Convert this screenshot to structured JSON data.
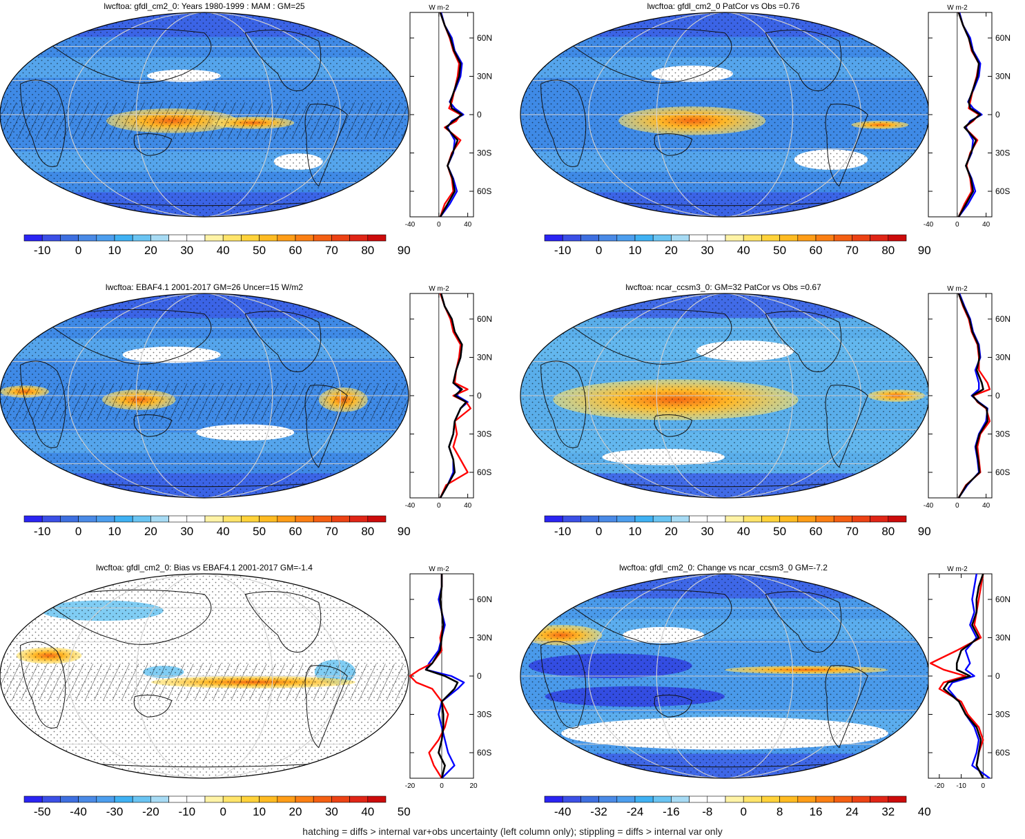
{
  "figure": {
    "footnote": "hatching = diffs > internal var+obs uncertainty (left column only); stippling = diffs > internal var only"
  },
  "colorbars": {
    "abs": {
      "labels": [
        "-10",
        "0",
        "10",
        "20",
        "30",
        "40",
        "50",
        "60",
        "70",
        "80",
        "90"
      ],
      "colors": [
        "#2a24f2",
        "#3b4fe6",
        "#3e6fe0",
        "#4a8ae6",
        "#4c9eee",
        "#3fb1f3",
        "#6ac4f2",
        "#a7dbf4",
        "#ffffff",
        "#ffffff",
        "#fff3a6",
        "#ffe46a",
        "#ffd23a",
        "#ffbb22",
        "#ff9d17",
        "#fb7f13",
        "#f45f12",
        "#ec4214",
        "#e02516",
        "#cc0b0b"
      ]
    },
    "bias": {
      "labels": [
        "-50",
        "-40",
        "-30",
        "-20",
        "-10",
        "0",
        "10",
        "20",
        "30",
        "40",
        "50"
      ],
      "colors": [
        "#2a24f2",
        "#3b4fe6",
        "#3e6fe0",
        "#4a8ae6",
        "#4c9eee",
        "#3fb1f3",
        "#6ac4f2",
        "#a7dbf4",
        "#ffffff",
        "#ffffff",
        "#fff3a6",
        "#ffe46a",
        "#ffd23a",
        "#ffbb22",
        "#ff9d17",
        "#fb7f13",
        "#f45f12",
        "#ec4214",
        "#e02516",
        "#cc0b0b"
      ]
    },
    "change": {
      "labels": [
        "-40",
        "-32",
        "-24",
        "-16",
        "-8",
        "0",
        "8",
        "16",
        "24",
        "32",
        "40"
      ],
      "colors": [
        "#2a24f2",
        "#3b4fe6",
        "#3e6fe0",
        "#4a8ae6",
        "#4c9eee",
        "#3fb1f3",
        "#6ac4f2",
        "#a7dbf4",
        "#ffffff",
        "#ffffff",
        "#fff3a6",
        "#ffe46a",
        "#ffd23a",
        "#ffbb22",
        "#ff9d17",
        "#fb7f13",
        "#f45f12",
        "#ec4214",
        "#e02516",
        "#cc0b0b"
      ]
    }
  },
  "lat_labels": [
    "60N",
    "30N",
    "0",
    "30S",
    "60S"
  ],
  "profile_unit": "W m-2",
  "series_colors": {
    "obs": "#0000ff",
    "model": "#ff0000",
    "other": "#000000"
  },
  "chart_data": [
    {
      "type": "heatmap",
      "title": "lwcftoa: gfdl_cm2_0: Years 1980-1999 : MAM : GM=25",
      "colorbar": "abs",
      "theme": "abs1",
      "profile": {
        "xticks": [
          -40,
          0,
          40
        ],
        "xlim": [
          -40,
          48
        ],
        "lat": [
          -80,
          -70,
          -60,
          -50,
          -40,
          -30,
          -20,
          -10,
          -5,
          0,
          5,
          10,
          20,
          30,
          40,
          50,
          60,
          70,
          80
        ],
        "series": [
          {
            "color": "blue",
            "values": [
              2,
              15,
              25,
              20,
              12,
              20,
              22,
              12,
              18,
              34,
              22,
              15,
              23,
              30,
              32,
              22,
              18,
              8,
              3
            ]
          },
          {
            "color": "red",
            "values": [
              2,
              8,
              20,
              18,
              12,
              18,
              30,
              8,
              24,
              30,
              14,
              18,
              22,
              26,
              28,
              20,
              15,
              8,
              2
            ]
          },
          {
            "color": "black",
            "values": [
              2,
              12,
              22,
              19,
              12,
              19,
              26,
              10,
              20,
              32,
              18,
              16,
              22,
              28,
              30,
              21,
              16,
              8,
              2
            ]
          }
        ]
      }
    },
    {
      "type": "heatmap",
      "title": "lwcftoa: gfdl_cm2_0 PatCor vs Obs =0.76",
      "colorbar": "abs",
      "theme": "abs2",
      "profile": {
        "xticks": [
          -40,
          0,
          40
        ],
        "xlim": [
          -40,
          48
        ],
        "lat": [
          -80,
          -70,
          -60,
          -50,
          -40,
          -30,
          -20,
          -10,
          -5,
          0,
          5,
          10,
          20,
          30,
          40,
          50,
          60,
          70,
          80
        ],
        "series": [
          {
            "color": "blue",
            "values": [
              2,
              15,
              25,
              20,
              12,
              20,
              22,
              12,
              18,
              34,
              22,
              15,
              23,
              30,
              32,
              22,
              18,
              8,
              3
            ]
          },
          {
            "color": "red",
            "values": [
              2,
              10,
              20,
              18,
              13,
              18,
              28,
              10,
              22,
              30,
              16,
              18,
              22,
              27,
              30,
              20,
              16,
              8,
              2
            ]
          },
          {
            "color": "black",
            "values": [
              2,
              12,
              22,
              19,
              12,
              19,
              26,
              10,
              20,
              32,
              18,
              16,
              22,
              28,
              30,
              21,
              16,
              8,
              2
            ]
          }
        ]
      }
    },
    {
      "type": "heatmap",
      "title": "lwcftoa: EBAF4.1 2001-2017 GM=26 Uncer=15 W/m2",
      "colorbar": "abs",
      "theme": "abs3",
      "profile": {
        "xticks": [
          -40,
          0,
          40
        ],
        "xlim": [
          -40,
          48
        ],
        "lat": [
          -80,
          -70,
          -60,
          -50,
          -40,
          -30,
          -20,
          -10,
          -5,
          0,
          5,
          10,
          20,
          30,
          40,
          50,
          60,
          70,
          80
        ],
        "series": [
          {
            "color": "blue",
            "values": [
              2,
              12,
              20,
              20,
              14,
              20,
              22,
              30,
              40,
              25,
              30,
              20,
              24,
              30,
              32,
              22,
              18,
              8,
              3
            ]
          },
          {
            "color": "red",
            "values": [
              2,
              10,
              40,
              30,
              20,
              25,
              22,
              44,
              38,
              20,
              40,
              22,
              24,
              28,
              30,
              20,
              16,
              8,
              2
            ]
          },
          {
            "color": "black",
            "values": [
              2,
              12,
              22,
              20,
              14,
              20,
              22,
              30,
              38,
              22,
              32,
              20,
              24,
              30,
              32,
              22,
              18,
              8,
              3
            ]
          }
        ]
      }
    },
    {
      "type": "heatmap",
      "title": "lwcftoa: ncar_ccsm3_0: GM=32 PatCor vs Obs =0.67",
      "colorbar": "abs",
      "theme": "abs4",
      "profile": {
        "xticks": [
          -40,
          0,
          40
        ],
        "xlim": [
          -40,
          48
        ],
        "lat": [
          -80,
          -70,
          -60,
          -50,
          -40,
          -30,
          -20,
          -10,
          -5,
          0,
          5,
          10,
          20,
          30,
          40,
          50,
          60,
          70,
          80
        ],
        "series": [
          {
            "color": "blue",
            "values": [
              2,
              14,
              30,
              28,
              25,
              30,
              40,
              42,
              30,
              20,
              30,
              30,
              25,
              32,
              30,
              22,
              18,
              10,
              3
            ]
          },
          {
            "color": "red",
            "values": [
              2,
              12,
              32,
              30,
              28,
              32,
              45,
              40,
              28,
              22,
              45,
              42,
              30,
              30,
              28,
              20,
              16,
              8,
              2
            ]
          },
          {
            "color": "black",
            "values": [
              2,
              13,
              31,
              29,
              26,
              31,
              42,
              41,
              29,
              21,
              36,
              34,
              27,
              31,
              29,
              21,
              17,
              9,
              2
            ]
          }
        ]
      }
    },
    {
      "type": "heatmap",
      "title": "lwcftoa: gfdl_cm2_0: Bias vs EBAF4.1 2001-2017 GM=-1.4",
      "colorbar": "bias",
      "theme": "bias",
      "profile": {
        "xticks": [
          -20,
          0,
          20
        ],
        "xlim": [
          -20,
          20
        ],
        "lat": [
          -80,
          -70,
          -60,
          -50,
          -40,
          -30,
          -20,
          -10,
          -5,
          0,
          5,
          10,
          20,
          30,
          40,
          50,
          60,
          70,
          80
        ],
        "series": [
          {
            "color": "blue",
            "values": [
              0,
              8,
              4,
              2,
              0,
              -2,
              0,
              10,
              14,
              6,
              -10,
              -8,
              -2,
              0,
              2,
              0,
              -2,
              0,
              0
            ]
          },
          {
            "color": "red",
            "values": [
              0,
              -5,
              -8,
              -2,
              2,
              4,
              0,
              -6,
              -16,
              -20,
              -14,
              -6,
              0,
              -1,
              1,
              0,
              -1,
              0,
              0
            ]
          },
          {
            "color": "black",
            "values": [
              0,
              2,
              -2,
              0,
              1,
              1,
              0,
              8,
              10,
              2,
              -10,
              -6,
              -1,
              0,
              1,
              0,
              -1,
              0,
              0
            ]
          }
        ]
      }
    },
    {
      "type": "heatmap",
      "title": "lwcftoa: gfdl_cm2_0: Change vs ncar_ccsm3_0 GM=-7.2",
      "colorbar": "change",
      "theme": "change",
      "profile": {
        "xticks": [
          -20,
          -10,
          0
        ],
        "xlim": [
          -25,
          4
        ],
        "lat": [
          -80,
          -70,
          -60,
          -50,
          -40,
          -30,
          -20,
          -10,
          -5,
          0,
          5,
          10,
          20,
          30,
          40,
          50,
          60,
          70,
          80
        ],
        "series": [
          {
            "color": "blue",
            "values": [
              3,
              -5,
              -3,
              -2,
              -4,
              -8,
              -11,
              -16,
              -14,
              -4,
              -8,
              -6,
              -8,
              -3,
              -6,
              -4,
              -5,
              -4,
              -3
            ]
          },
          {
            "color": "red",
            "values": [
              0,
              -3,
              -2,
              0,
              -2,
              -7,
              -10,
              -20,
              -18,
              -8,
              -18,
              -24,
              -12,
              -1,
              -4,
              -3,
              -2,
              -1,
              0
            ]
          },
          {
            "color": "black",
            "values": [
              0,
              -3,
              -2,
              -1,
              -3,
              -8,
              -11,
              -18,
              -16,
              -6,
              -12,
              -12,
              -10,
              -2,
              -5,
              -3,
              -3,
              -2,
              0
            ]
          }
        ]
      }
    }
  ]
}
